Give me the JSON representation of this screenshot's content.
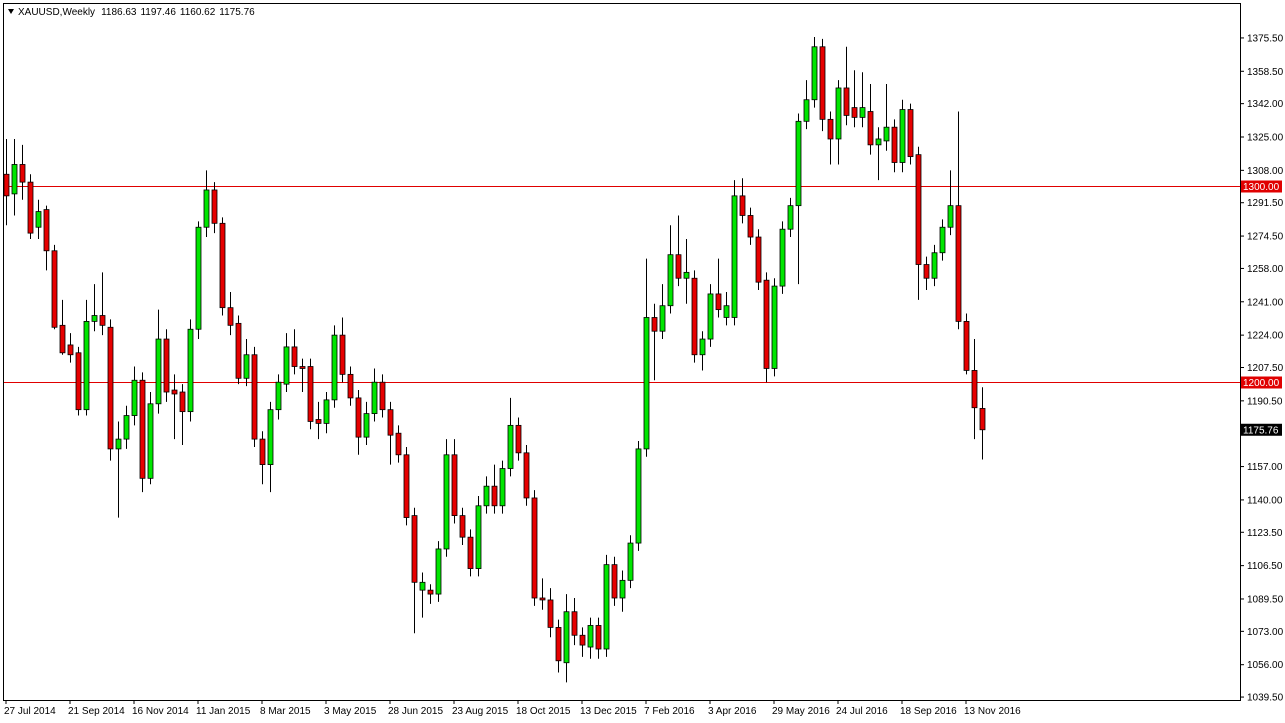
{
  "chart_data": {
    "type": "candlestick",
    "title": "XAUUSD,Weekly",
    "header_ohlc": [
      1186.63,
      1197.46,
      1160.62,
      1175.76
    ],
    "categories": [
      "27 Jul 2014",
      null,
      null,
      null,
      null,
      null,
      null,
      null,
      "21 Sep 2014",
      null,
      null,
      null,
      null,
      null,
      null,
      null,
      "16 Nov 2014",
      null,
      null,
      null,
      null,
      null,
      null,
      null,
      "11 Jan 2015",
      null,
      null,
      null,
      null,
      null,
      null,
      null,
      "8 Mar 2015",
      null,
      null,
      null,
      null,
      null,
      null,
      null,
      "3 May 2015",
      null,
      null,
      null,
      null,
      null,
      null,
      null,
      "28 Jun 2015",
      null,
      null,
      null,
      null,
      null,
      null,
      null,
      "23 Aug 2015",
      null,
      null,
      null,
      null,
      null,
      null,
      null,
      "18 Oct 2015",
      null,
      null,
      null,
      null,
      null,
      null,
      null,
      "13 Dec 2015",
      null,
      null,
      null,
      null,
      null,
      null,
      null,
      "7 Feb 2016",
      null,
      null,
      null,
      null,
      null,
      null,
      null,
      "3 Apr 2016",
      null,
      null,
      null,
      null,
      null,
      null,
      null,
      "29 May 2016",
      null,
      null,
      null,
      null,
      null,
      null,
      null,
      "24 Jul 2016",
      null,
      null,
      null,
      null,
      null,
      null,
      null,
      "18 Sep 2016",
      null,
      null,
      null,
      null,
      null,
      null,
      null,
      "13 Nov 2016",
      null,
      null
    ],
    "open": [
      1306,
      1296,
      1311,
      1302,
      1279,
      1288,
      1267,
      1229,
      1219,
      1215,
      1186,
      1231,
      1234,
      1228,
      1166,
      1171,
      1183,
      1201,
      1151,
      1189,
      1222,
      1196,
      1195,
      1185,
      1227,
      1279,
      1298,
      1281,
      1238,
      1230,
      1202,
      1214,
      1171,
      1158,
      1186,
      1199,
      1218,
      1208,
      1208,
      1181,
      1179,
      1191,
      1224,
      1204,
      1192,
      1172,
      1184,
      1200,
      1186,
      1174,
      1163,
      1132,
      1094,
      1094,
      1092,
      1115,
      1163,
      1132,
      1121,
      1105,
      1137,
      1147,
      1137,
      1156,
      1178,
      1164,
      1141,
      1090,
      1089,
      1075,
      1057,
      1083,
      1071,
      1065,
      1076,
      1064,
      1107,
      1090,
      1099,
      1118,
      1166,
      1233,
      1226,
      1239,
      1265,
      1253,
      1253,
      1214,
      1222,
      1245,
      1233,
      1233,
      1295,
      1285,
      1274,
      1252,
      1207,
      1249,
      1278,
      1290,
      1333,
      1344,
      1371,
      1334,
      1324,
      1350,
      1340,
      1335,
      1338,
      1321,
      1323,
      1330,
      1312,
      1339,
      1316,
      1260,
      1253,
      1266,
      1279,
      1290,
      1231,
      1206,
      1186.63
    ],
    "high": [
      1324,
      1324,
      1321,
      1306,
      1293,
      1290,
      1270,
      1242,
      1225,
      1218,
      1242,
      1250,
      1256,
      1232,
      1180,
      1188,
      1208,
      1205,
      1195,
      1237,
      1227,
      1204,
      1199,
      1232,
      1282,
      1308,
      1302,
      1284,
      1246,
      1234,
      1222,
      1218,
      1175,
      1190,
      1204,
      1225,
      1227,
      1212,
      1212,
      1190,
      1195,
      1229,
      1233,
      1208,
      1196,
      1190,
      1207,
      1204,
      1190,
      1178,
      1167,
      1136,
      1103,
      1097,
      1119,
      1171,
      1171,
      1136,
      1125,
      1142,
      1152,
      1158,
      1160,
      1192,
      1182,
      1168,
      1145,
      1100,
      1095,
      1079,
      1092,
      1090,
      1075,
      1080,
      1080,
      1112,
      1111,
      1104,
      1122,
      1170,
      1263,
      1240,
      1250,
      1280,
      1285,
      1273,
      1257,
      1226,
      1250,
      1263,
      1246,
      1303,
      1304,
      1289,
      1278,
      1256,
      1253,
      1282,
      1294,
      1337,
      1354,
      1376,
      1375,
      1338,
      1354,
      1371,
      1359,
      1358,
      1352,
      1330,
      1352,
      1334,
      1344,
      1342,
      1320,
      1264,
      1270,
      1283,
      1308,
      1338,
      1235,
      1222,
      1197.46
    ],
    "low": [
      1280,
      1285,
      1293,
      1273,
      1273,
      1257,
      1227,
      1214,
      1210,
      1183,
      1183,
      1226,
      1224,
      1160,
      1131,
      1166,
      1178,
      1144,
      1148,
      1184,
      1190,
      1171,
      1168,
      1180,
      1222,
      1274,
      1276,
      1234,
      1224,
      1199,
      1198,
      1167,
      1148,
      1144,
      1181,
      1195,
      1204,
      1195,
      1176,
      1171,
      1174,
      1187,
      1200,
      1188,
      1163,
      1168,
      1180,
      1182,
      1158,
      1159,
      1127,
      1072,
      1080,
      1087,
      1088,
      1111,
      1128,
      1117,
      1101,
      1101,
      1133,
      1133,
      1133,
      1152,
      1160,
      1137,
      1086,
      1084,
      1070,
      1052,
      1047,
      1066,
      1060,
      1059,
      1059,
      1060,
      1086,
      1083,
      1095,
      1114,
      1162,
      1201,
      1222,
      1235,
      1249,
      1240,
      1210,
      1206,
      1218,
      1233,
      1229,
      1229,
      1281,
      1270,
      1247,
      1200,
      1203,
      1245,
      1274,
      1250,
      1329,
      1340,
      1328,
      1311,
      1311,
      1331,
      1330,
      1330,
      1316,
      1303,
      1318,
      1307,
      1307,
      1311,
      1242,
      1247,
      1249,
      1262,
      1275,
      1227,
      1204,
      1171,
      1160.62
    ],
    "close": [
      1295,
      1311,
      1302,
      1276,
      1287,
      1267,
      1228,
      1215,
      1214,
      1186,
      1231,
      1234,
      1229,
      1166,
      1171,
      1183,
      1201,
      1151,
      1189,
      1222,
      1195,
      1194,
      1185,
      1227,
      1279,
      1298,
      1281,
      1238,
      1229,
      1202,
      1214,
      1171,
      1158,
      1186,
      1200,
      1218,
      1208,
      1207,
      1180,
      1179,
      1191,
      1224,
      1204,
      1192,
      1172,
      1184,
      1200,
      1186,
      1173,
      1163,
      1131,
      1098,
      1098,
      1092,
      1115,
      1163,
      1132,
      1121,
      1105,
      1137,
      1147,
      1137,
      1156,
      1178,
      1164,
      1141,
      1090,
      1089,
      1075,
      1058,
      1083,
      1071,
      1066,
      1076,
      1064,
      1107,
      1090,
      1099,
      1118,
      1166,
      1233,
      1226,
      1239,
      1265,
      1253,
      1256,
      1214,
      1222,
      1245,
      1237,
      1239,
      1295,
      1285,
      1274,
      1251,
      1207,
      1249,
      1278,
      1290,
      1333,
      1344,
      1371,
      1334,
      1324,
      1350,
      1336,
      1335,
      1340,
      1321,
      1324,
      1330,
      1312,
      1339,
      1315,
      1260,
      1253,
      1266,
      1279,
      1290,
      1231,
      1206,
      1187,
      1175.76
    ],
    "up_color": "#00e600",
    "down_color": "#e60000",
    "ylim": [
      1038,
      1392.8
    ],
    "yticks": [
      {
        "value": 1375.5,
        "label": "1375.50"
      },
      {
        "value": 1358.5,
        "label": "1358.50"
      },
      {
        "value": 1342,
        "label": "1342.00"
      },
      {
        "value": 1325,
        "label": "1325.00"
      },
      {
        "value": 1308,
        "label": "1308.00"
      },
      {
        "value": 1291.5,
        "label": "1291.50"
      },
      {
        "value": 1274.5,
        "label": "1274.50"
      },
      {
        "value": 1258,
        "label": "1258.00"
      },
      {
        "value": 1241,
        "label": "1241.00"
      },
      {
        "value": 1224,
        "label": "1224.00"
      },
      {
        "value": 1207.5,
        "label": "1207.50"
      },
      {
        "value": 1190.5,
        "label": "1190.50"
      },
      {
        "value": 1157,
        "label": "1157.00"
      },
      {
        "value": 1140,
        "label": "1140.00"
      },
      {
        "value": 1123.5,
        "label": "1123.50"
      },
      {
        "value": 1106.5,
        "label": "1106.50"
      },
      {
        "value": 1089.5,
        "label": "1089.50"
      },
      {
        "value": 1073,
        "label": "1073.00"
      },
      {
        "value": 1056,
        "label": "1056.00"
      },
      {
        "value": 1039.5,
        "label": "1039.50"
      }
    ],
    "hlines": [
      {
        "value": 1300,
        "label": "1300.00"
      },
      {
        "value": 1200,
        "label": "1200.00"
      }
    ],
    "hline_color": "#e00000",
    "grid": false
  }
}
